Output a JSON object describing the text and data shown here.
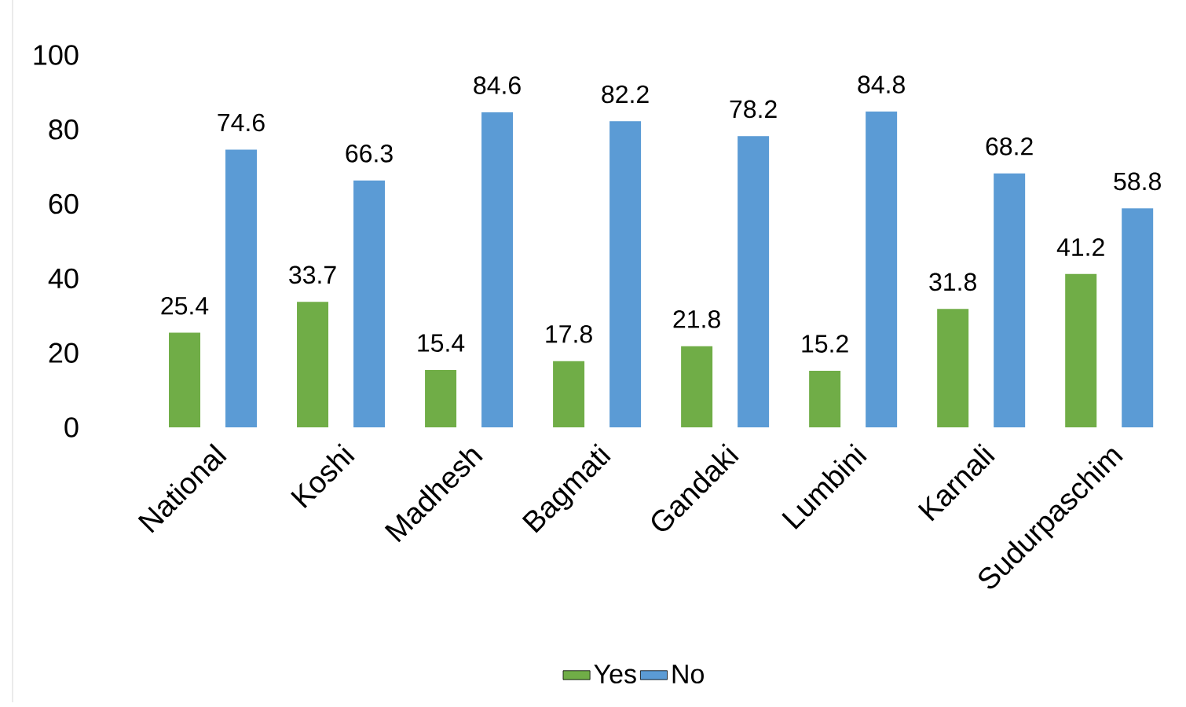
{
  "chart_data": {
    "type": "bar",
    "categories": [
      "National",
      "Koshi",
      "Madhesh",
      "Bagmati",
      "Gandaki",
      "Lumbini",
      "Karnali",
      "Sudurpaschim"
    ],
    "series": [
      {
        "name": "Yes",
        "color": "#70ad47",
        "values": [
          25.4,
          33.7,
          15.4,
          17.8,
          21.8,
          15.2,
          31.8,
          41.2
        ]
      },
      {
        "name": "No",
        "color": "#5b9bd5",
        "values": [
          74.6,
          66.3,
          84.6,
          82.2,
          78.2,
          84.8,
          68.2,
          58.8
        ]
      }
    ],
    "ylim": [
      0,
      100
    ],
    "yticks": [
      0,
      20,
      40,
      60,
      80,
      100
    ],
    "legend": "bottom",
    "data_labels": true
  }
}
